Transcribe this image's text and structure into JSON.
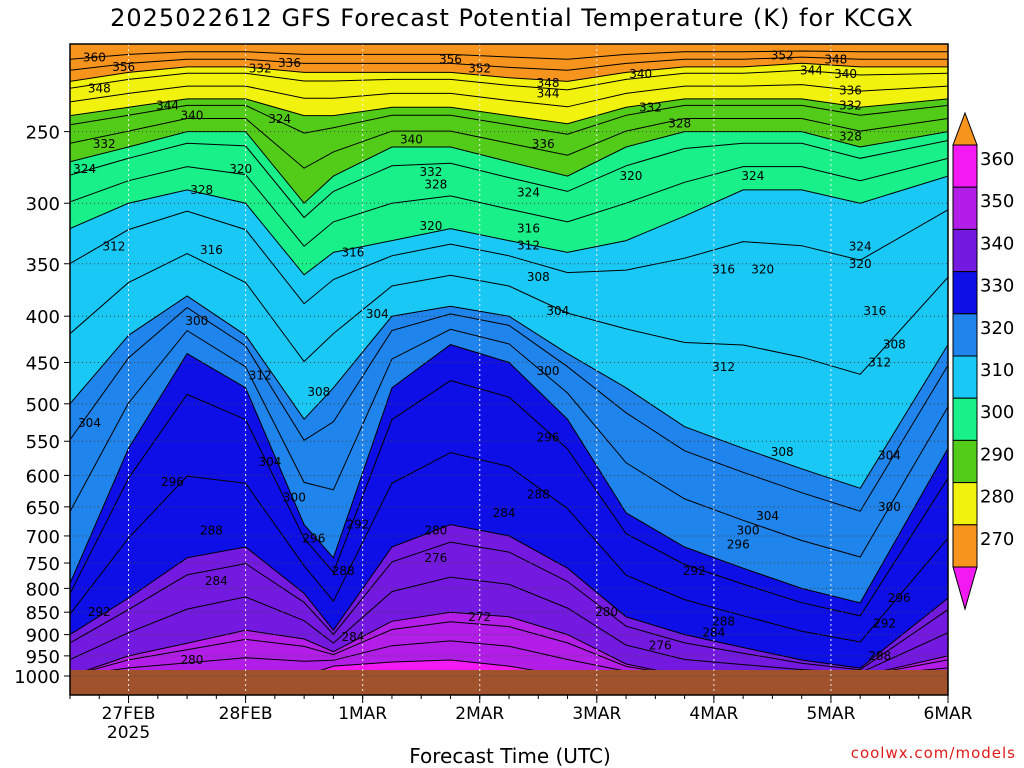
{
  "header": {
    "title": "2025022612 GFS Forecast Potential Temperature (K) for KCGX"
  },
  "footer": {
    "credit": "coolwx.com/models"
  },
  "chart_data": {
    "type": "heatmap",
    "title": "2025022612 GFS Forecast Potential Temperature (K) for KCGX",
    "xlabel": "Forecast Time (UTC)",
    "ylabel": "",
    "x_ticks": [
      {
        "label": "27FEB",
        "sublabel": "2025",
        "hours": 12
      },
      {
        "label": "28FEB",
        "hours": 36
      },
      {
        "label": "1MAR",
        "hours": 60
      },
      {
        "label": "2MAR",
        "hours": 84
      },
      {
        "label": "3MAR",
        "hours": 108
      },
      {
        "label": "4MAR",
        "hours": 132
      },
      {
        "label": "5MAR",
        "hours": 156
      },
      {
        "label": "6MAR",
        "hours": 180
      }
    ],
    "xlim_hours": [
      0,
      180
    ],
    "y_scale": "log-pressure",
    "y_ticks": [
      "250",
      "300",
      "350",
      "400",
      "450",
      "500",
      "550",
      "600",
      "650",
      "700",
      "750",
      "800",
      "850",
      "900",
      "950",
      "1000"
    ],
    "ylim": [
      1000,
      200
    ],
    "grid": true,
    "colorbar": {
      "labels": [
        "360",
        "350",
        "340",
        "330",
        "320",
        "310",
        "300",
        "290",
        "280",
        "270"
      ],
      "bins": [
        {
          "from": 350,
          "to": 360,
          "color": "#f7941d"
        },
        {
          "from": 340,
          "to": 350,
          "color": "#f2f20f"
        },
        {
          "from": 330,
          "to": 340,
          "color": "#52cc19"
        },
        {
          "from": 320,
          "to": 330,
          "color": "#19f08a"
        },
        {
          "from": 310,
          "to": 320,
          "color": "#19c8f5"
        },
        {
          "from": 300,
          "to": 310,
          "color": "#1f84eb"
        },
        {
          "from": 290,
          "to": 300,
          "color": "#0e0ee6"
        },
        {
          "from": 280,
          "to": 290,
          "color": "#7319e0"
        },
        {
          "from": 270,
          "to": 280,
          "color": "#b21ee8"
        },
        {
          "from": 260,
          "to": 270,
          "color": "#f219f2"
        }
      ],
      "overflow_high_color": "#f7941d",
      "overflow_low_color": "#f219f2"
    },
    "ground_color": "#a0522d",
    "series": [
      {
        "theta": 270,
        "pressure": [
          1000,
          1000,
          1000,
          1000,
          1000,
          975,
          965,
          960,
          975,
          1000,
          1000,
          1000,
          1000,
          1000,
          1000,
          1000
        ]
      },
      {
        "theta": 280,
        "pressure": [
          1000,
          950,
          920,
          890,
          910,
          940,
          870,
          850,
          860,
          900,
          970,
          1000,
          1000,
          1000,
          1000,
          950
        ]
      },
      {
        "theta": 290,
        "pressure": [
          900,
          820,
          740,
          720,
          810,
          890,
          720,
          680,
          700,
          760,
          860,
          900,
          930,
          960,
          980,
          820
        ]
      },
      {
        "theta": 300,
        "pressure": [
          790,
          560,
          440,
          480,
          680,
          740,
          480,
          430,
          450,
          520,
          660,
          720,
          760,
          800,
          830,
          560
        ]
      },
      {
        "theta": 310,
        "pressure": [
          500,
          420,
          380,
          420,
          520,
          480,
          400,
          390,
          400,
          440,
          480,
          530,
          560,
          590,
          620,
          430
        ]
      },
      {
        "theta": 320,
        "pressure": [
          320,
          300,
          290,
          300,
          360,
          340,
          330,
          320,
          330,
          340,
          330,
          310,
          290,
          290,
          300,
          280
        ]
      },
      {
        "theta": 330,
        "pressure": [
          270,
          260,
          250,
          250,
          300,
          280,
          260,
          260,
          270,
          280,
          260,
          250,
          250,
          250,
          260,
          250
        ]
      },
      {
        "theta": 340,
        "pressure": [
          240,
          235,
          230,
          230,
          240,
          240,
          235,
          235,
          240,
          245,
          235,
          230,
          230,
          230,
          235,
          230
        ]
      },
      {
        "theta": 350,
        "pressure": [
          220,
          215,
          212,
          212,
          215,
          215,
          215,
          215,
          218,
          220,
          215,
          212,
          212,
          210,
          212,
          212
        ]
      },
      {
        "theta": 360,
        "pressure": [
          205,
          203,
          202,
          202,
          203,
          203,
          203,
          203,
          204,
          205,
          203,
          202,
          202,
          202,
          202,
          202
        ]
      }
    ],
    "series_hours": [
      0,
      12,
      24,
      36,
      48,
      54,
      66,
      78,
      90,
      102,
      114,
      126,
      138,
      150,
      162,
      180
    ],
    "contour_labels": [
      {
        "text": "360",
        "h": 5,
        "p": 207
      },
      {
        "text": "356",
        "h": 11,
        "p": 212
      },
      {
        "text": "348",
        "h": 6,
        "p": 224
      },
      {
        "text": "340",
        "h": 25,
        "p": 240
      },
      {
        "text": "344",
        "h": 20,
        "p": 234
      },
      {
        "text": "332",
        "h": 7,
        "p": 258
      },
      {
        "text": "324",
        "h": 3,
        "p": 275
      },
      {
        "text": "328",
        "h": 27,
        "p": 290
      },
      {
        "text": "320",
        "h": 35,
        "p": 275
      },
      {
        "text": "312",
        "h": 9,
        "p": 335
      },
      {
        "text": "316",
        "h": 29,
        "p": 338
      },
      {
        "text": "332",
        "h": 39,
        "p": 213
      },
      {
        "text": "336",
        "h": 45,
        "p": 210
      },
      {
        "text": "324",
        "h": 43,
        "p": 242
      },
      {
        "text": "356",
        "h": 78,
        "p": 208
      },
      {
        "text": "352",
        "h": 84,
        "p": 213
      },
      {
        "text": "348",
        "h": 98,
        "p": 221
      },
      {
        "text": "344",
        "h": 98,
        "p": 227
      },
      {
        "text": "340",
        "h": 70,
        "p": 255
      },
      {
        "text": "336",
        "h": 97,
        "p": 258
      },
      {
        "text": "332",
        "h": 74,
        "p": 277
      },
      {
        "text": "328",
        "h": 75,
        "p": 286
      },
      {
        "text": "324",
        "h": 94,
        "p": 292
      },
      {
        "text": "320",
        "h": 74,
        "p": 318
      },
      {
        "text": "316",
        "h": 58,
        "p": 340
      },
      {
        "text": "316",
        "h": 94,
        "p": 320
      },
      {
        "text": "312",
        "h": 94,
        "p": 334
      },
      {
        "text": "308",
        "h": 96,
        "p": 362
      },
      {
        "text": "304",
        "h": 63,
        "p": 398
      },
      {
        "text": "304",
        "h": 100,
        "p": 395
      },
      {
        "text": "300",
        "h": 26,
        "p": 405
      },
      {
        "text": "312",
        "h": 39,
        "p": 465
      },
      {
        "text": "308",
        "h": 51,
        "p": 485
      },
      {
        "text": "304",
        "h": 4,
        "p": 525
      },
      {
        "text": "304",
        "h": 41,
        "p": 580
      },
      {
        "text": "300",
        "h": 46,
        "p": 635
      },
      {
        "text": "300",
        "h": 98,
        "p": 460
      },
      {
        "text": "296",
        "h": 98,
        "p": 545
      },
      {
        "text": "296",
        "h": 21,
        "p": 610
      },
      {
        "text": "292",
        "h": 59,
        "p": 680
      },
      {
        "text": "296",
        "h": 50,
        "p": 705
      },
      {
        "text": "288",
        "h": 96,
        "p": 630
      },
      {
        "text": "284",
        "h": 89,
        "p": 660
      },
      {
        "text": "280",
        "h": 75,
        "p": 690
      },
      {
        "text": "276",
        "h": 75,
        "p": 740
      },
      {
        "text": "288",
        "h": 29,
        "p": 690
      },
      {
        "text": "284",
        "h": 30,
        "p": 785
      },
      {
        "text": "288",
        "h": 56,
        "p": 765
      },
      {
        "text": "292",
        "h": 6,
        "p": 850
      },
      {
        "text": "284",
        "h": 58,
        "p": 905
      },
      {
        "text": "272",
        "h": 84,
        "p": 860
      },
      {
        "text": "280",
        "h": 110,
        "p": 850
      },
      {
        "text": "276",
        "h": 121,
        "p": 925
      },
      {
        "text": "280",
        "h": 25,
        "p": 960
      },
      {
        "text": "340",
        "h": 117,
        "p": 216
      },
      {
        "text": "332",
        "h": 119,
        "p": 235
      },
      {
        "text": "328",
        "h": 125,
        "p": 245
      },
      {
        "text": "320",
        "h": 115,
        "p": 280
      },
      {
        "text": "316",
        "h": 134,
        "p": 355
      },
      {
        "text": "320",
        "h": 142,
        "p": 355
      },
      {
        "text": "312",
        "h": 134,
        "p": 455
      },
      {
        "text": "308",
        "h": 146,
        "p": 565
      },
      {
        "text": "304",
        "h": 143,
        "p": 665
      },
      {
        "text": "300",
        "h": 139,
        "p": 690
      },
      {
        "text": "296",
        "h": 137,
        "p": 715
      },
      {
        "text": "292",
        "h": 128,
        "p": 765
      },
      {
        "text": "288",
        "h": 134,
        "p": 870
      },
      {
        "text": "284",
        "h": 132,
        "p": 895
      },
      {
        "text": "324",
        "h": 140,
        "p": 280
      },
      {
        "text": "352",
        "h": 146,
        "p": 206
      },
      {
        "text": "344",
        "h": 152,
        "p": 214
      },
      {
        "text": "348",
        "h": 157,
        "p": 208
      },
      {
        "text": "340",
        "h": 159,
        "p": 216
      },
      {
        "text": "336",
        "h": 160,
        "p": 225
      },
      {
        "text": "332",
        "h": 160,
        "p": 234
      },
      {
        "text": "328",
        "h": 160,
        "p": 253
      },
      {
        "text": "324",
        "h": 162,
        "p": 335
      },
      {
        "text": "320",
        "h": 162,
        "p": 350
      },
      {
        "text": "316",
        "h": 165,
        "p": 395
      },
      {
        "text": "312",
        "h": 166,
        "p": 450
      },
      {
        "text": "308",
        "h": 169,
        "p": 430
      },
      {
        "text": "304",
        "h": 168,
        "p": 570
      },
      {
        "text": "300",
        "h": 168,
        "p": 650
      },
      {
        "text": "296",
        "h": 170,
        "p": 820
      },
      {
        "text": "292",
        "h": 167,
        "p": 875
      },
      {
        "text": "288",
        "h": 166,
        "p": 950
      }
    ]
  }
}
